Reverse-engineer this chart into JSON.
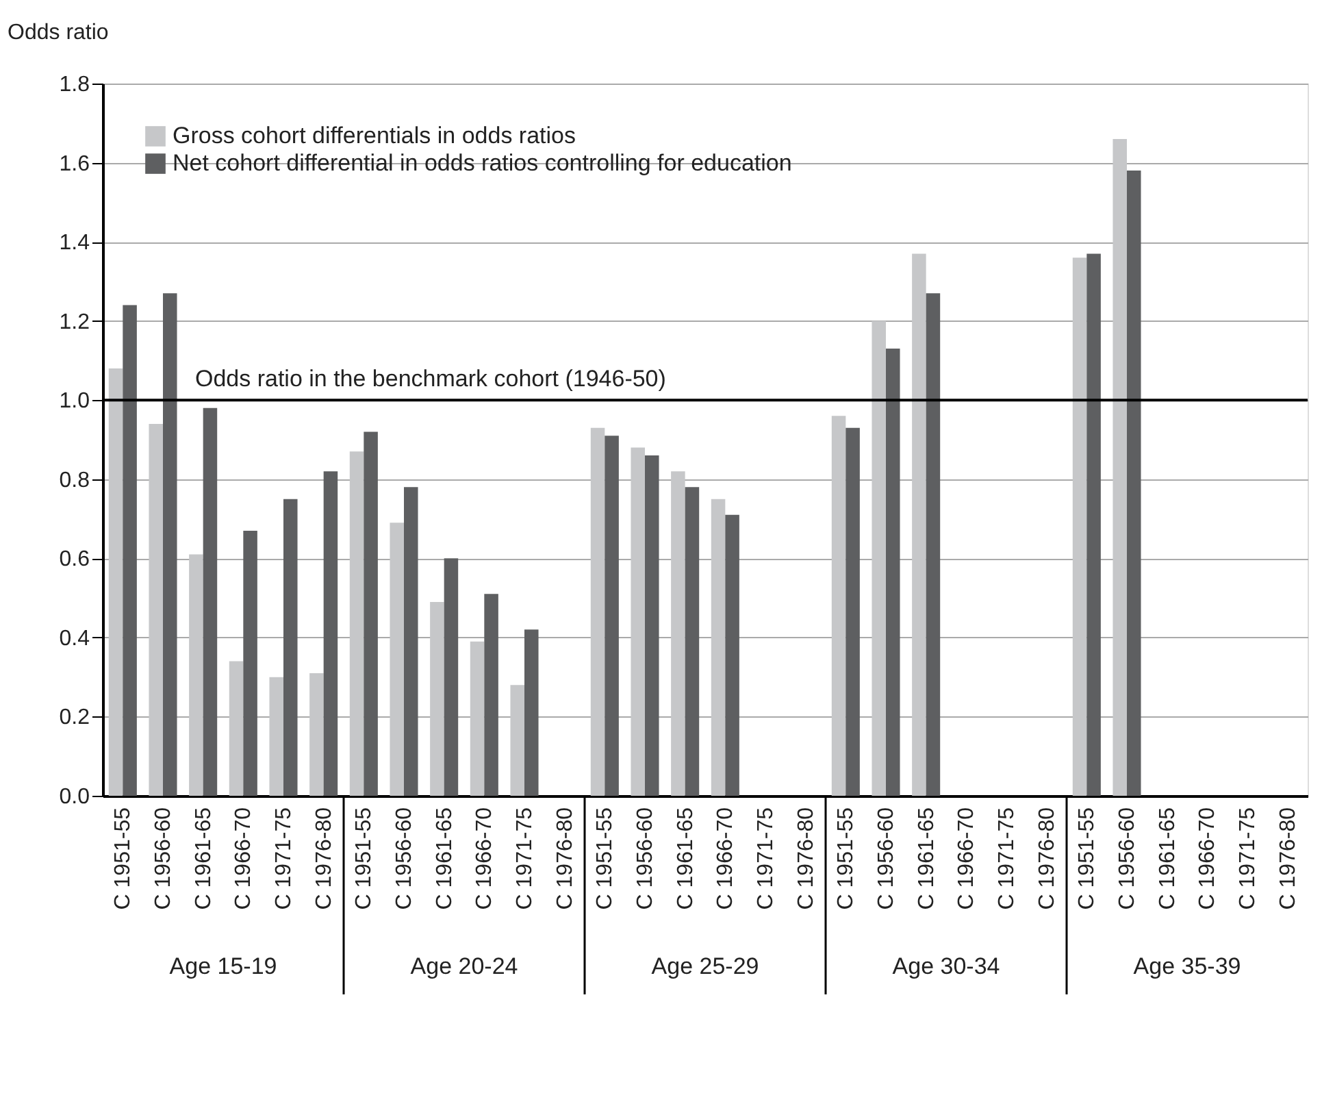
{
  "chart_data": {
    "type": "bar",
    "ylabel": "Odds ratio",
    "categories": [
      "C 1951-55",
      "C 1956-60",
      "C 1961-65",
      "C 1966-70",
      "C 1971-75",
      "C 1976-80",
      "C 1951-55",
      "C 1956-60",
      "C 1961-65",
      "C 1966-70",
      "C 1971-75",
      "C 1976-80",
      "C 1951-55",
      "C 1956-60",
      "C 1961-65",
      "C 1966-70",
      "C 1971-75",
      "C 1976-80",
      "C 1951-55",
      "C 1956-60",
      "C 1961-65",
      "C 1966-70",
      "C 1971-75",
      "C 1976-80",
      "C 1951-55",
      "C 1956-60",
      "C 1961-65",
      "C 1966-70",
      "C 1971-75",
      "C 1976-80"
    ],
    "series": [
      {
        "name": "Gross cohort differentials in odds ratios",
        "color": "#c6c7c9",
        "values": [
          1.08,
          0.94,
          0.61,
          0.34,
          0.3,
          0.31,
          0.87,
          0.69,
          0.49,
          0.39,
          0.28,
          null,
          0.93,
          0.88,
          0.82,
          0.75,
          null,
          null,
          0.96,
          1.2,
          1.37,
          null,
          null,
          null,
          1.36,
          1.66,
          null,
          null,
          null,
          null
        ]
      },
      {
        "name": "Net cohort differential in odds ratios controlling for education",
        "color": "#5e5f61",
        "values": [
          1.24,
          1.27,
          0.98,
          0.67,
          0.75,
          0.82,
          0.92,
          0.78,
          0.6,
          0.51,
          0.42,
          null,
          0.91,
          0.86,
          0.78,
          0.71,
          null,
          null,
          0.93,
          1.13,
          1.27,
          null,
          null,
          null,
          1.37,
          1.58,
          null,
          null,
          null,
          null
        ]
      }
    ],
    "ylim": [
      0,
      1.8
    ],
    "yticks": [
      {
        "value": 0,
        "label": "0.0"
      },
      {
        "value": 0.2,
        "label": "0.2"
      },
      {
        "value": 0.4,
        "label": "0.4"
      },
      {
        "value": 0.6,
        "label": "0.6"
      },
      {
        "value": 0.8,
        "label": "0.8"
      },
      {
        "value": 1,
        "label": "1.0"
      },
      {
        "value": 1.2,
        "label": "1.2"
      },
      {
        "value": 1.4,
        "label": "1.4"
      },
      {
        "value": 1.6,
        "label": "1.6"
      },
      {
        "value": 1.8,
        "label": "1.8"
      }
    ],
    "ref_lines": [
      {
        "axis": "y",
        "value": 1.0,
        "label": "Odds ratio in the benchmark cohort (1946-50)",
        "color": "#000000"
      }
    ],
    "annotations": [
      "Age 15-19",
      "Age 20-24",
      "Age 25-29",
      "Age 30-34",
      "Age 35-39"
    ],
    "grid": "y",
    "legend": "top left"
  }
}
